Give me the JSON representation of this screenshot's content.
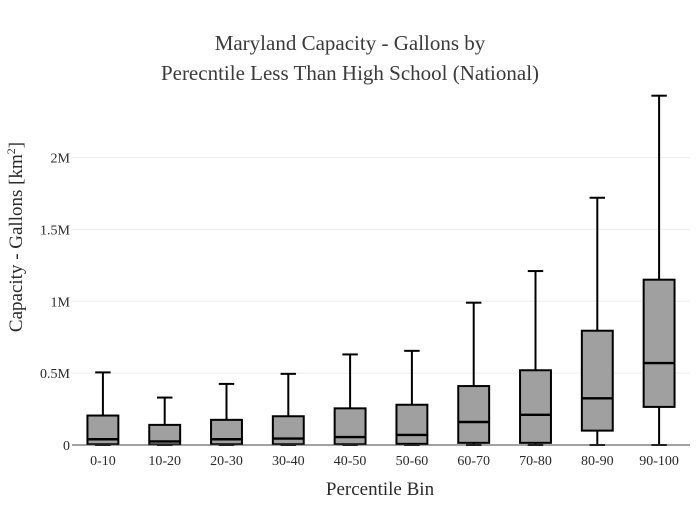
{
  "chart_data": {
    "type": "box",
    "title_lines": [
      "Maryland Capacity - Gallons by",
      "Perecntile Less Than High School (National)"
    ],
    "xlabel": "Percentile Bin",
    "ylabel": "Capacity - Gallons  [km",
    "ylabel_superscript": "2",
    "ylabel_suffix": "]",
    "ylim": [
      0,
      2400000
    ],
    "yticks": [
      {
        "value": 0,
        "label": "0"
      },
      {
        "value": 500000,
        "label": "0.5M"
      },
      {
        "value": 1000000,
        "label": "1M"
      },
      {
        "value": 1500000,
        "label": "1.5M"
      },
      {
        "value": 2000000,
        "label": "2M"
      }
    ],
    "grid": true,
    "box_color": "#a0a0a0",
    "line_color": "#000000",
    "categories": [
      "0-10",
      "10-20",
      "20-30",
      "30-40",
      "40-50",
      "50-60",
      "60-70",
      "70-80",
      "80-90",
      "90-100"
    ],
    "boxes": [
      {
        "min": 0,
        "q1": 5000,
        "median": 40000,
        "q3": 205000,
        "max": 505000
      },
      {
        "min": 0,
        "q1": 3000,
        "median": 25000,
        "q3": 140000,
        "max": 330000
      },
      {
        "min": 0,
        "q1": 5000,
        "median": 40000,
        "q3": 175000,
        "max": 425000
      },
      {
        "min": 0,
        "q1": 5000,
        "median": 45000,
        "q3": 200000,
        "max": 495000
      },
      {
        "min": 0,
        "q1": 5000,
        "median": 55000,
        "q3": 255000,
        "max": 630000
      },
      {
        "min": 0,
        "q1": 8000,
        "median": 70000,
        "q3": 280000,
        "max": 655000
      },
      {
        "min": 0,
        "q1": 15000,
        "median": 160000,
        "q3": 410000,
        "max": 990000
      },
      {
        "min": 0,
        "q1": 15000,
        "median": 210000,
        "q3": 520000,
        "max": 1210000
      },
      {
        "min": 0,
        "q1": 100000,
        "median": 325000,
        "q3": 795000,
        "max": 1720000
      },
      {
        "min": 0,
        "q1": 265000,
        "median": 570000,
        "q3": 1150000,
        "max": 2430000
      }
    ]
  }
}
